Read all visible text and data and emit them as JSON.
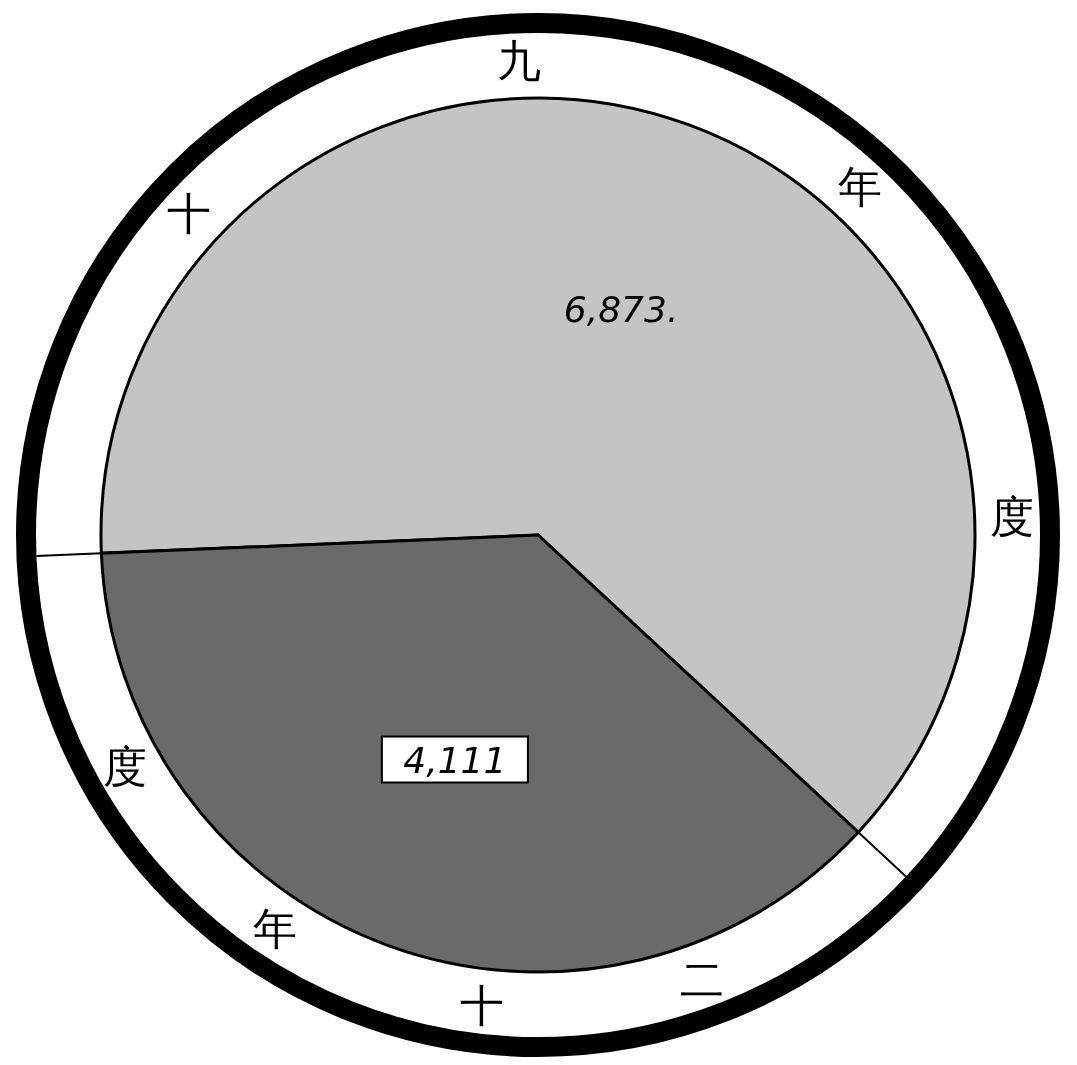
{
  "chart_data": {
    "type": "pie",
    "categories": [
      "十九年度",
      "二十年度"
    ],
    "values": [
      6873,
      4111
    ],
    "colors": [
      "#c4c4c4",
      "#6a6a6a"
    ],
    "value_labels": [
      "6,873.",
      "4,111"
    ]
  }
}
